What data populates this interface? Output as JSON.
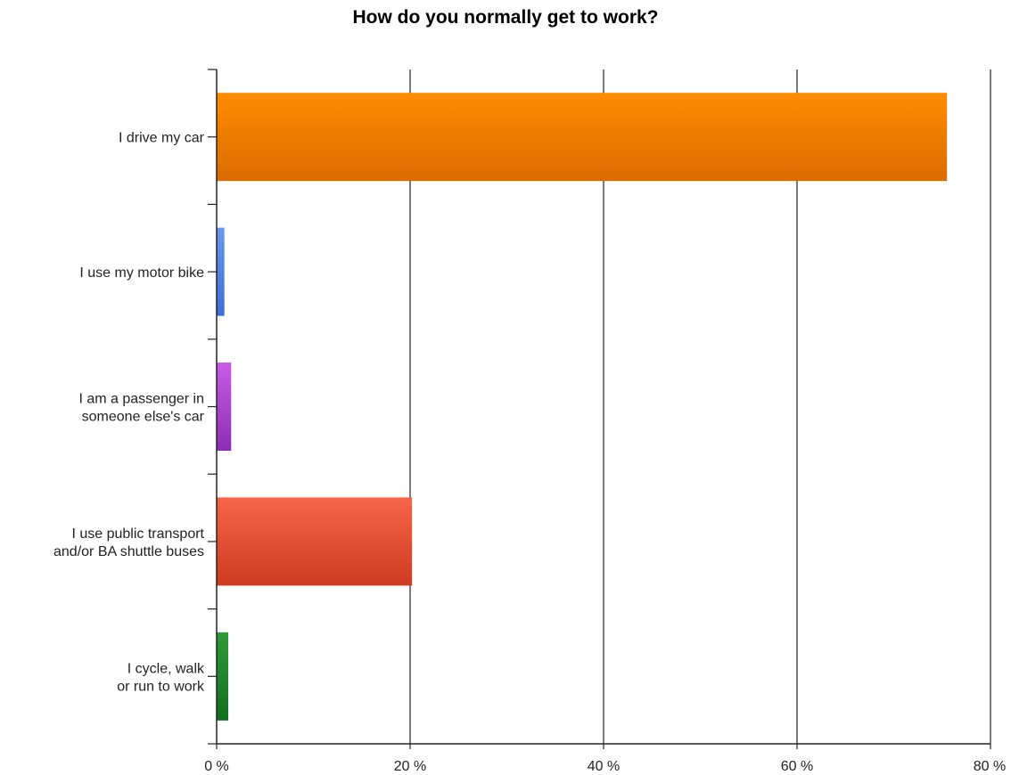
{
  "chart_data": {
    "type": "bar",
    "orientation": "horizontal",
    "title": "How do you normally get to work?",
    "xlabel": "",
    "ylabel": "",
    "xlim": [
      0,
      80
    ],
    "x_ticks": [
      0,
      20,
      40,
      60,
      80
    ],
    "x_tick_labels": [
      "0 %",
      "20 %",
      "40 %",
      "60 %",
      "80 %"
    ],
    "grid": true,
    "categories": [
      [
        "I drive my car"
      ],
      [
        "I use my motor bike"
      ],
      [
        "I am a passenger in",
        "someone else's car"
      ],
      [
        "I use public transport",
        "and/or BA shuttle buses"
      ],
      [
        "I cycle, walk",
        "or run to work"
      ]
    ],
    "values": [
      75.5,
      0.8,
      1.5,
      20.2,
      1.2
    ],
    "colors": [
      [
        "#ff8c00",
        "#d96c00"
      ],
      [
        "#6a98ec",
        "#3d6fd6"
      ],
      [
        "#c95be6",
        "#8b2fb4"
      ],
      [
        "#f6654a",
        "#cf3a22"
      ],
      [
        "#2f9b3a",
        "#136d1e"
      ]
    ]
  }
}
